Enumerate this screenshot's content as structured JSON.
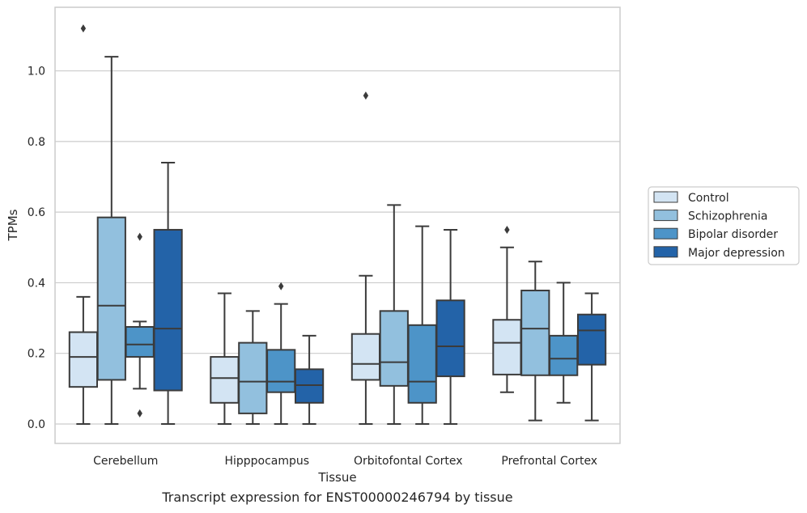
{
  "caption": "Transcript expression for ENST00000246794 by tissue",
  "chart_data": {
    "type": "box",
    "xlabel": "Tissue",
    "ylabel": "TPMs",
    "ylim": [
      -0.055,
      1.18
    ],
    "yticks": [
      0.0,
      0.2,
      0.4,
      0.6,
      0.8,
      1.0
    ],
    "ytick_labels": [
      "0.0",
      "0.2",
      "0.4",
      "0.6",
      "0.8",
      "1.0"
    ],
    "grid": true,
    "legend_position": "right",
    "categories": [
      "Cerebellum",
      "Hipppocampus",
      "Orbitofontal Cortex",
      "Prefrontal Cortex"
    ],
    "colors": {
      "Control": "#d3e4f3",
      "Schizophrenia": "#92c0de",
      "Bipolar disorder": "#4d94c8",
      "Major depression": "#2363a8"
    },
    "series": [
      {
        "name": "Control",
        "boxes": [
          {
            "whislo": 0.0,
            "q1": 0.105,
            "med": 0.19,
            "q3": 0.26,
            "whishi": 0.36,
            "fliers": [
              1.12
            ]
          },
          {
            "whislo": 0.0,
            "q1": 0.06,
            "med": 0.13,
            "q3": 0.19,
            "whishi": 0.37,
            "fliers": []
          },
          {
            "whislo": 0.0,
            "q1": 0.125,
            "med": 0.17,
            "q3": 0.255,
            "whishi": 0.42,
            "fliers": [
              0.93
            ]
          },
          {
            "whislo": 0.09,
            "q1": 0.14,
            "med": 0.23,
            "q3": 0.295,
            "whishi": 0.5,
            "fliers": [
              0.55
            ]
          }
        ]
      },
      {
        "name": "Schizophrenia",
        "boxes": [
          {
            "whislo": 0.0,
            "q1": 0.125,
            "med": 0.335,
            "q3": 0.585,
            "whishi": 1.04,
            "fliers": []
          },
          {
            "whislo": 0.0,
            "q1": 0.03,
            "med": 0.12,
            "q3": 0.23,
            "whishi": 0.32,
            "fliers": []
          },
          {
            "whislo": 0.0,
            "q1": 0.108,
            "med": 0.175,
            "q3": 0.32,
            "whishi": 0.62,
            "fliers": []
          },
          {
            "whislo": 0.01,
            "q1": 0.138,
            "med": 0.27,
            "q3": 0.378,
            "whishi": 0.46,
            "fliers": []
          }
        ]
      },
      {
        "name": "Bipolar disorder",
        "boxes": [
          {
            "whislo": 0.1,
            "q1": 0.19,
            "med": 0.225,
            "q3": 0.275,
            "whishi": 0.29,
            "fliers": [
              0.53,
              0.03
            ]
          },
          {
            "whislo": 0.0,
            "q1": 0.09,
            "med": 0.12,
            "q3": 0.21,
            "whishi": 0.34,
            "fliers": [
              0.39
            ]
          },
          {
            "whislo": 0.0,
            "q1": 0.06,
            "med": 0.12,
            "q3": 0.28,
            "whishi": 0.56,
            "fliers": []
          },
          {
            "whislo": 0.06,
            "q1": 0.138,
            "med": 0.185,
            "q3": 0.25,
            "whishi": 0.4,
            "fliers": []
          }
        ]
      },
      {
        "name": "Major depression",
        "boxes": [
          {
            "whislo": 0.0,
            "q1": 0.095,
            "med": 0.27,
            "q3": 0.55,
            "whishi": 0.74,
            "fliers": []
          },
          {
            "whislo": 0.0,
            "q1": 0.06,
            "med": 0.11,
            "q3": 0.155,
            "whishi": 0.25,
            "fliers": []
          },
          {
            "whislo": 0.0,
            "q1": 0.135,
            "med": 0.22,
            "q3": 0.35,
            "whishi": 0.55,
            "fliers": []
          },
          {
            "whislo": 0.01,
            "q1": 0.168,
            "med": 0.265,
            "q3": 0.31,
            "whishi": 0.37,
            "fliers": []
          }
        ]
      }
    ]
  }
}
